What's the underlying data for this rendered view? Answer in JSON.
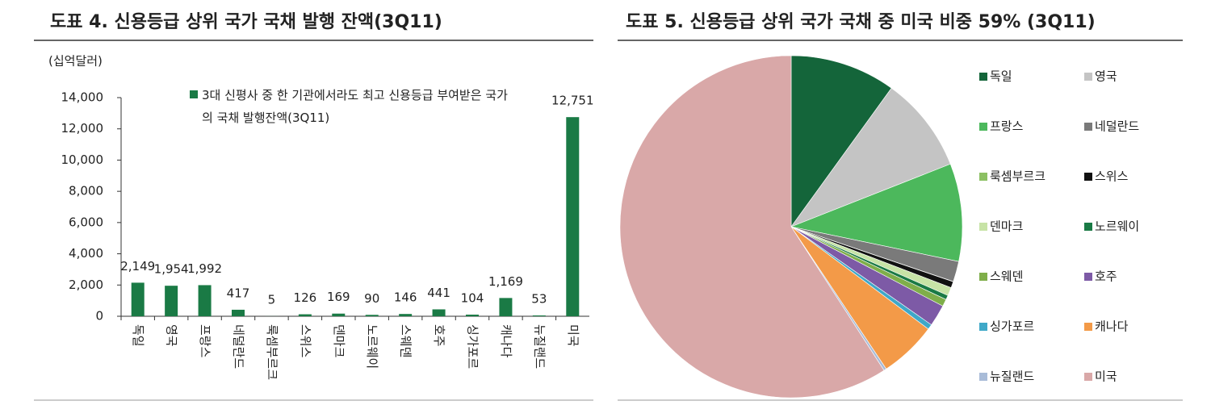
{
  "chart_data": [
    {
      "type": "bar",
      "title": "도표 4. 신용등급 상위 국가 국채 발행 잔액(3Q11)",
      "y_label": "(십억달러)",
      "categories": [
        "독일",
        "영국",
        "프랑스",
        "네덜란드",
        "룩셈부르크",
        "스위스",
        "덴마크",
        "노르웨이",
        "스웨덴",
        "호주",
        "싱가포르",
        "캐나다",
        "뉴질랜드",
        "미국"
      ],
      "series": [
        {
          "name": "3대 신평사 중 한 기관에서라도 최고 신용등급 부여받은 국가의 국채 발행잔액(3Q11)",
          "color": "#1a7a45",
          "values": [
            2149,
            1954,
            1992,
            417,
            5,
            126,
            169,
            90,
            146,
            441,
            104,
            1169,
            53,
            12751
          ],
          "value_labels": [
            "2,149",
            "1,954",
            "1,992",
            "417",
            "5",
            "126",
            "169",
            "90",
            "146",
            "441",
            "104",
            "1,169",
            "53",
            "12,751"
          ]
        }
      ],
      "ylim": [
        0,
        14000
      ],
      "yticks": [
        0,
        {
          "value": 2000,
          "label": "2,000"
        },
        {
          "value": 4000,
          "label": "4,000"
        },
        {
          "value": 6000,
          "label": "6,000"
        },
        {
          "value": 8000,
          "label": "8,000"
        },
        {
          "value": 10000,
          "label": "10,000"
        },
        {
          "value": 12000,
          "label": "12,000"
        },
        {
          "value": 14000,
          "label": "14,000"
        }
      ]
    },
    {
      "type": "pie",
      "title": "도표 5. 신용등급 상위 국가 국채 중 미국 비중 59% (3Q11)",
      "categories": [
        "독일",
        "영국",
        "프랑스",
        "네덜란드",
        "룩셈부르크",
        "스위스",
        "덴마크",
        "노르웨이",
        "스웨덴",
        "호주",
        "싱가포르",
        "캐나다",
        "뉴질랜드",
        "미국"
      ],
      "values": [
        2149,
        1954,
        1992,
        417,
        5,
        126,
        169,
        90,
        146,
        441,
        104,
        1169,
        53,
        12751
      ],
      "colors": [
        "#14653a",
        "#c4c4c4",
        "#4cb85c",
        "#7a7a7a",
        "#8cc063",
        "#111111",
        "#c7e3a6",
        "#1a7a45",
        "#7fae4a",
        "#7d5aa6",
        "#3fa8c8",
        "#f39a48",
        "#a9bcd8",
        "#d9a8a8"
      ]
    }
  ]
}
